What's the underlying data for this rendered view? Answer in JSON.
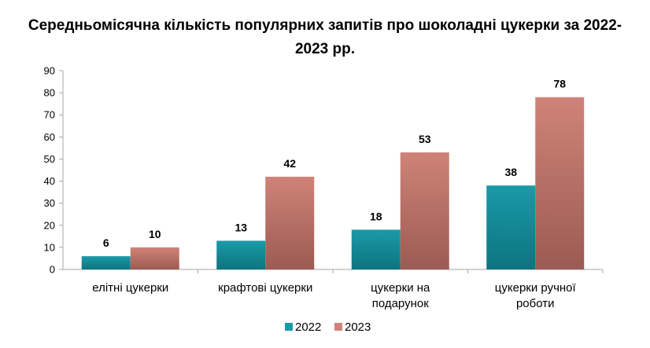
{
  "chart_data": {
    "type": "bar",
    "title": "Середньомісячна кількість популярних запитів про шоколадні цукерки за 2022-2023 рр.",
    "categories": [
      [
        "елітні цукерки"
      ],
      [
        "крафтові цукерки"
      ],
      [
        "цукерки на",
        "подарунок"
      ],
      [
        "цукерки ручної",
        "роботи"
      ]
    ],
    "series": [
      {
        "name": "2022",
        "values": [
          6,
          13,
          18,
          38
        ],
        "color": "#1a9aa8",
        "color_dark": "#0d7480"
      },
      {
        "name": "2023",
        "values": [
          10,
          42,
          53,
          78
        ],
        "color": "#d08378",
        "color_dark": "#9b5b52"
      }
    ],
    "ylim": [
      0,
      90
    ],
    "yticks": [
      0,
      10,
      20,
      30,
      40,
      50,
      60,
      70,
      80,
      90
    ],
    "grid": false,
    "legend": "bottom"
  }
}
